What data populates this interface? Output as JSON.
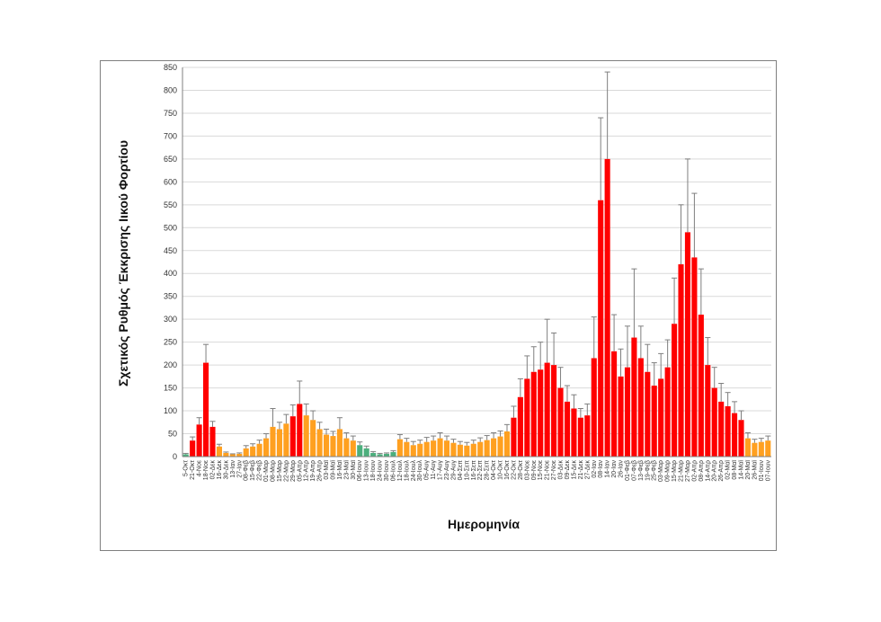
{
  "chart_data": {
    "type": "bar",
    "title": "",
    "xlabel": "Ημερομηνία",
    "ylabel": "Σχετικός Ρυθμός Έκκρισης Ιικού Φορτίου",
    "ylim": [
      0,
      850
    ],
    "yticks": [
      0,
      50,
      100,
      150,
      200,
      250,
      300,
      350,
      400,
      450,
      500,
      550,
      600,
      650,
      700,
      750,
      800,
      850
    ],
    "grid": "horizontal",
    "legend": "none",
    "has_error_bars": true,
    "colors": {
      "red": "#ff0000",
      "orange": "#ffa020",
      "green": "#4caf7d",
      "error_bar": "#7f7f7f",
      "grid": "#d9d9d9"
    },
    "categories": [
      "5-Οκτ",
      "21-Οκτ",
      "4-Νοε",
      "18-Νοε",
      "02-Δεκ",
      "16-Δεκ",
      "30-Δεκ",
      "13-Ιαν",
      "27-Ιαν",
      "08-Φεβ",
      "15-Φεβ",
      "22-Φεβ",
      "01-Μαρ",
      "08-Μαρ",
      "15-Μαρ",
      "22-Μαρ",
      "29-Μαρ",
      "05-Απρ",
      "12-Απρ",
      "19-Απρ",
      "26-Απρ",
      "03-Μαϊ",
      "09-Μαϊ",
      "16-Μαϊ",
      "23-Μαϊ",
      "30-Μαϊ",
      "06-Ιουν",
      "13-Ιουν",
      "18-Ιουν",
      "24-Ιουν",
      "30-Ιουν",
      "06-Ιουλ",
      "12-Ιουλ",
      "18-Ιουλ",
      "24-Ιουλ",
      "30-Ιουλ",
      "05-Αυγ",
      "11-Αυγ",
      "17-Αυγ",
      "23-Αυγ",
      "29-Αυγ",
      "04-Σεπ",
      "10-Σεπ",
      "16-Σεπ",
      "22-Σεπ",
      "28-Σεπ",
      "04-Οκτ",
      "10-Οκτ",
      "16-Οκτ",
      "22-Οκτ",
      "28-Οκτ",
      "03-Νοε",
      "09-Νοε",
      "15-Νοε",
      "21-Νοε",
      "27-Νοε",
      "03-Δεκ",
      "09-Δεκ",
      "15-Δεκ",
      "21-Δεκ",
      "27-Δεκ",
      "02-Ιαν",
      "08-Ιαν",
      "14-Ιαν",
      "20-Ιαν",
      "26-Ιαν",
      "01-Φεβ",
      "07-Φεβ",
      "13-Φεβ",
      "19-Φεβ",
      "25-Φεβ",
      "03-Μαρ",
      "09-Μαρ",
      "15-Μαρ",
      "21-Μαρ",
      "27-Μαρ",
      "02-Απρ",
      "08-Απρ",
      "14-Απρ",
      "20-Απρ",
      "26-Απρ",
      "02-Μαϊ",
      "08-Μαϊ",
      "14-Μαϊ",
      "20-Μαϊ",
      "26-Μαϊ",
      "01-Ιουν",
      "07-Ιουν"
    ],
    "values": [
      5,
      35,
      70,
      205,
      65,
      22,
      8,
      5,
      6,
      18,
      22,
      28,
      40,
      65,
      60,
      72,
      88,
      115,
      90,
      80,
      60,
      48,
      45,
      60,
      40,
      35,
      25,
      18,
      8,
      5,
      6,
      10,
      38,
      32,
      25,
      28,
      32,
      35,
      40,
      35,
      30,
      26,
      24,
      28,
      32,
      36,
      40,
      44,
      55,
      85,
      130,
      170,
      185,
      190,
      205,
      200,
      150,
      120,
      105,
      85,
      90,
      215,
      560,
      650,
      230,
      175,
      195,
      260,
      215,
      185,
      155,
      170,
      195,
      290,
      420,
      490,
      435,
      310,
      200,
      150,
      120,
      110,
      95,
      80,
      40,
      30,
      32,
      35
    ],
    "errors": [
      2,
      8,
      15,
      40,
      12,
      5,
      2,
      1,
      2,
      6,
      6,
      8,
      10,
      40,
      15,
      20,
      25,
      50,
      25,
      20,
      15,
      12,
      10,
      25,
      12,
      10,
      7,
      5,
      3,
      2,
      2,
      3,
      10,
      8,
      8,
      8,
      10,
      10,
      12,
      10,
      8,
      7,
      7,
      8,
      9,
      10,
      12,
      12,
      15,
      25,
      40,
      50,
      55,
      60,
      95,
      70,
      45,
      35,
      30,
      20,
      25,
      90,
      180,
      190,
      80,
      60,
      90,
      150,
      70,
      60,
      50,
      55,
      60,
      100,
      130,
      160,
      140,
      100,
      60,
      45,
      40,
      30,
      25,
      20,
      12,
      8,
      8,
      10
    ],
    "bar_colors": [
      "green",
      "red",
      "red",
      "red",
      "red",
      "orange",
      "orange",
      "orange",
      "orange",
      "orange",
      "orange",
      "orange",
      "orange",
      "orange",
      "orange",
      "orange",
      "red",
      "red",
      "orange",
      "orange",
      "orange",
      "orange",
      "orange",
      "orange",
      "orange",
      "orange",
      "green",
      "green",
      "green",
      "green",
      "green",
      "green",
      "orange",
      "orange",
      "orange",
      "orange",
      "orange",
      "orange",
      "orange",
      "orange",
      "orange",
      "orange",
      "orange",
      "orange",
      "orange",
      "orange",
      "orange",
      "orange",
      "orange",
      "red",
      "red",
      "red",
      "red",
      "red",
      "red",
      "red",
      "red",
      "red",
      "red",
      "red",
      "red",
      "red",
      "red",
      "red",
      "red",
      "red",
      "red",
      "red",
      "red",
      "red",
      "red",
      "red",
      "red",
      "red",
      "red",
      "red",
      "red",
      "red",
      "red",
      "red",
      "red",
      "red",
      "red",
      "red",
      "orange",
      "orange",
      "orange",
      "orange"
    ]
  }
}
